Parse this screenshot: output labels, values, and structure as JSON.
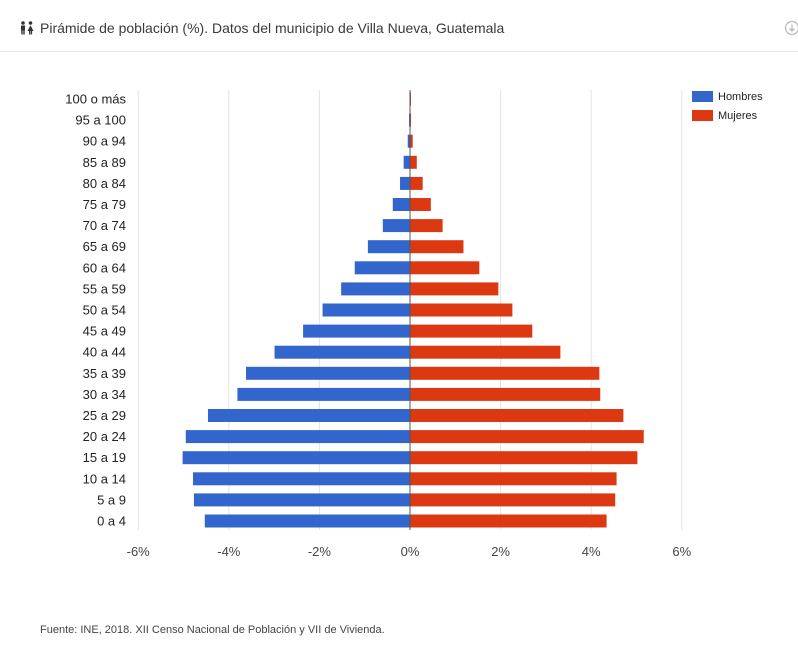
{
  "header": {
    "title": "Pirámide de población (%). Datos del municipio de Villa Nueva, Guatemala",
    "icon": "people-icon",
    "download_icon": "download-icon"
  },
  "source_text": "Fuente: INE, 2018. XII Censo Nacional de Población y VII de Vivienda.",
  "chart_data": {
    "type": "bar",
    "orientation": "horizontal",
    "categories": [
      "100 o más",
      "95 a 100",
      "90 a 94",
      "85 a 89",
      "80 a 84",
      "75 a 79",
      "70 a 74",
      "65 a 69",
      "60 a 64",
      "55 a 59",
      "50 a 54",
      "45 a 49",
      "40 a 44",
      "35 a 39",
      "30 a 34",
      "25 a 29",
      "20 a 24",
      "15 a 19",
      "10 a 14",
      "5 a 9",
      "0 a 4"
    ],
    "series": [
      {
        "name": "Hombres",
        "color": "#3366cc",
        "values": [
          -0.01,
          -0.02,
          -0.05,
          -0.14,
          -0.22,
          -0.38,
          -0.6,
          -0.93,
          -1.22,
          -1.52,
          -1.93,
          -2.36,
          -2.99,
          -3.62,
          -3.81,
          -4.46,
          -4.95,
          -5.02,
          -4.79,
          -4.77,
          -4.53
        ]
      },
      {
        "name": "Mujeres",
        "color": "#dc3912",
        "values": [
          0.01,
          0.02,
          0.06,
          0.15,
          0.28,
          0.46,
          0.72,
          1.18,
          1.53,
          1.95,
          2.26,
          2.7,
          3.32,
          4.18,
          4.2,
          4.71,
          5.16,
          5.02,
          4.56,
          4.53,
          4.34
        ]
      }
    ],
    "xticks": [
      "-6%",
      "-4%",
      "-2%",
      "0%",
      "2%",
      "4%",
      "6%"
    ],
    "xlim": [
      -6,
      6
    ],
    "grid": true,
    "legend_position": "top-right"
  }
}
